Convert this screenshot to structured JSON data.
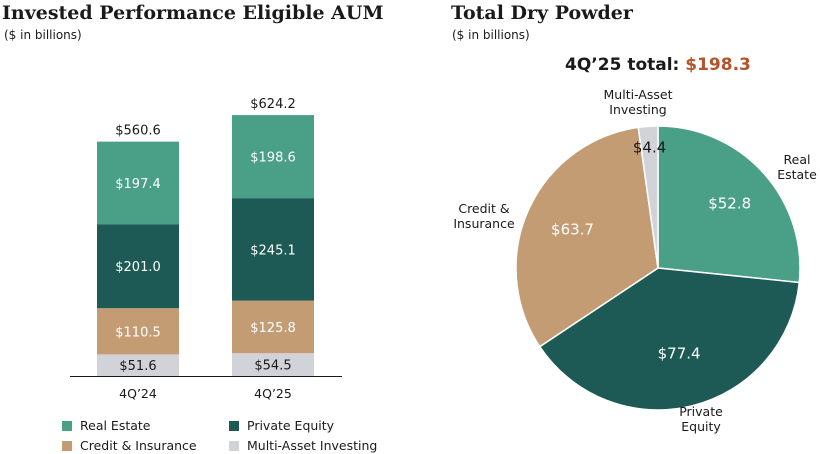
{
  "left_chart": {
    "title": "Invested Performance Eligible AUM",
    "subtitle": "($ in billions)"
  },
  "right_chart": {
    "title": "Total Dry Powder",
    "subtitle": "($ in billions)",
    "total_label": "4Q’25 total:",
    "total_value": "$198.3"
  },
  "colors": {
    "real_estate": "#4a9f87",
    "private_equity": "#1d5a55",
    "credit_insurance": "#c49c74",
    "multi_asset": "#d2d3d9",
    "accent": "#b5532a"
  },
  "legend": {
    "items": [
      {
        "label": "Real Estate",
        "color": "#4a9f87"
      },
      {
        "label": "Private Equity",
        "color": "#1d5a55"
      },
      {
        "label": "Credit & Insurance",
        "color": "#c49c74"
      },
      {
        "label": "Multi-Asset Investing",
        "color": "#d2d3d9"
      }
    ]
  },
  "chart_data": [
    {
      "type": "bar",
      "stacked": true,
      "title": "Invested Performance Eligible AUM",
      "subtitle": "($ in billions)",
      "categories": [
        "4Q’24",
        "4Q’25"
      ],
      "totals": [
        560.6,
        624.2
      ],
      "total_labels": [
        "$560.6",
        "$624.2"
      ],
      "series": [
        {
          "name": "Multi-Asset Investing",
          "values": [
            51.6,
            54.5
          ],
          "labels": [
            "$51.6",
            "$54.5"
          ],
          "color": "#d2d3d9",
          "label_color": "#1a1a1a"
        },
        {
          "name": "Credit & Insurance",
          "values": [
            110.5,
            125.8
          ],
          "labels": [
            "$110.5",
            "$125.8"
          ],
          "color": "#c49c74",
          "label_color": "#ffffff"
        },
        {
          "name": "Private Equity",
          "values": [
            201.0,
            245.1
          ],
          "labels": [
            "$201.0",
            "$245.1"
          ],
          "color": "#1d5a55",
          "label_color": "#ffffff"
        },
        {
          "name": "Real Estate",
          "values": [
            197.4,
            198.6
          ],
          "labels": [
            "$197.4",
            "$198.6"
          ],
          "color": "#4a9f87",
          "label_color": "#ffffff"
        }
      ],
      "legend_position": "bottom",
      "grid": false
    },
    {
      "type": "pie",
      "title": "Total Dry Powder",
      "subtitle": "($ in billions)",
      "total": 198.3,
      "slices": [
        {
          "name": "Real Estate",
          "category_label": [
            "Real",
            "Estate"
          ],
          "value": 52.8,
          "label": "$52.8",
          "color": "#4a9f87",
          "label_color": "#ffffff"
        },
        {
          "name": "Private Equity",
          "category_label": [
            "Private",
            "Equity"
          ],
          "value": 77.4,
          "label": "$77.4",
          "color": "#1d5a55",
          "label_color": "#ffffff"
        },
        {
          "name": "Credit & Insurance",
          "category_label": [
            "Credit &",
            "Insurance"
          ],
          "value": 63.7,
          "label": "$63.7",
          "color": "#c49c74",
          "label_color": "#ffffff"
        },
        {
          "name": "Multi-Asset Investing",
          "category_label": [
            "Multi-Asset",
            "Investing"
          ],
          "value": 4.4,
          "label": "$4.4",
          "color": "#d2d3d9",
          "label_color": "#1a1a1a"
        }
      ],
      "start_angle_deg": 0,
      "direction": "clockwise"
    }
  ]
}
